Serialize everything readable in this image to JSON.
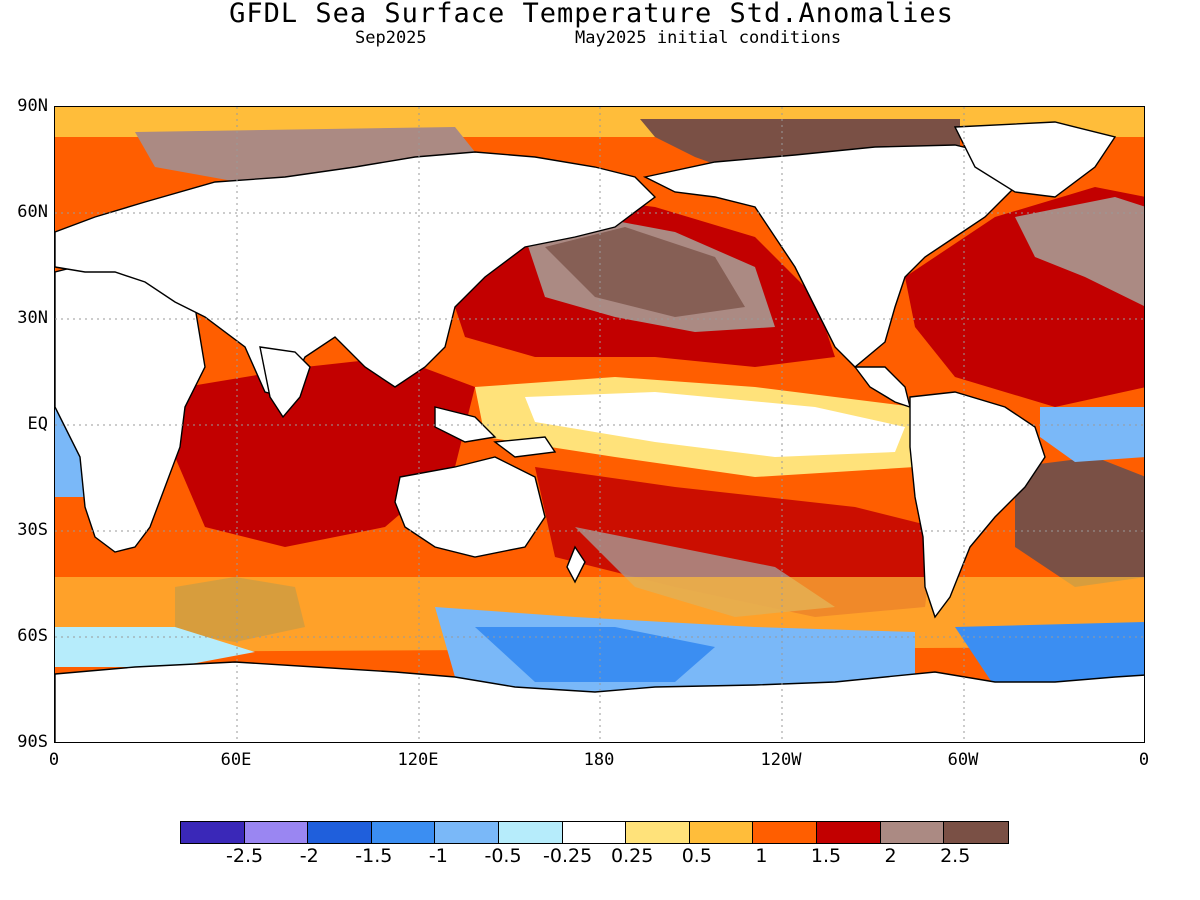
{
  "title": "GFDL Sea Surface Temperature Std.Anomalies",
  "subtitle_left": "Sep2025",
  "subtitle_right": "May2025 initial conditions",
  "map": {
    "lat_ticks": [
      "90N",
      "60N",
      "30N",
      "EQ",
      "30S",
      "60S",
      "90S"
    ],
    "lon_ticks": [
      "0",
      "60E",
      "120E",
      "180",
      "120W",
      "60W",
      "0"
    ],
    "land_color": "#ffffff",
    "coastline_color": "#000000"
  },
  "colorbar": {
    "colors": [
      "#3a28b8",
      "#9a86f2",
      "#1f5fdc",
      "#3b8ef2",
      "#7ab8f8",
      "#b6ecfb",
      "#ffffff",
      "#ffe27a",
      "#ffbd3a",
      "#ff5e00",
      "#c20000",
      "#ab8a83",
      "#7a5045"
    ],
    "labels": [
      "-2.5",
      "-2",
      "-1.5",
      "-1",
      "-0.5",
      "-0.25",
      "0.25",
      "0.5",
      "1",
      "1.5",
      "2",
      "2.5"
    ]
  }
}
